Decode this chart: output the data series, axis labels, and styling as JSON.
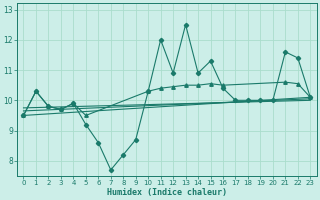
{
  "xlabel": "Humidex (Indice chaleur)",
  "bg_color": "#cceee8",
  "grid_color": "#aaddcc",
  "line_color": "#1a7a6a",
  "xlim": [
    -0.5,
    23.5
  ],
  "ylim": [
    7.5,
    13.2
  ],
  "xticks": [
    0,
    1,
    2,
    3,
    4,
    5,
    6,
    7,
    8,
    9,
    10,
    11,
    12,
    13,
    14,
    15,
    16,
    17,
    18,
    19,
    20,
    21,
    22,
    23
  ],
  "yticks": [
    8,
    9,
    10,
    11,
    12,
    13
  ],
  "series1_x": [
    0,
    1,
    2,
    3,
    4,
    5,
    6,
    7,
    8,
    9,
    10,
    11,
    12,
    13,
    14,
    15,
    16,
    17,
    18,
    19,
    20,
    21,
    22,
    23
  ],
  "series1_y": [
    9.5,
    10.3,
    9.8,
    9.7,
    9.9,
    9.2,
    8.6,
    7.7,
    8.2,
    8.7,
    10.3,
    12.0,
    10.9,
    12.5,
    10.9,
    11.3,
    10.4,
    10.0,
    10.0,
    10.0,
    10.0,
    11.6,
    11.4,
    10.1
  ],
  "series2_x": [
    0,
    1,
    2,
    3,
    4,
    5,
    10,
    11,
    12,
    13,
    14,
    15,
    16,
    21,
    22,
    23
  ],
  "series2_y": [
    9.5,
    10.3,
    9.8,
    9.7,
    9.9,
    9.5,
    10.3,
    10.4,
    10.45,
    10.5,
    10.5,
    10.55,
    10.5,
    10.6,
    10.55,
    10.1
  ],
  "trend1_x": [
    0,
    23
  ],
  "trend1_y": [
    9.65,
    10.05
  ],
  "trend2_x": [
    0,
    23
  ],
  "trend2_y": [
    9.5,
    10.1
  ],
  "trend3_x": [
    0,
    23
  ],
  "trend3_y": [
    9.75,
    10.0
  ]
}
